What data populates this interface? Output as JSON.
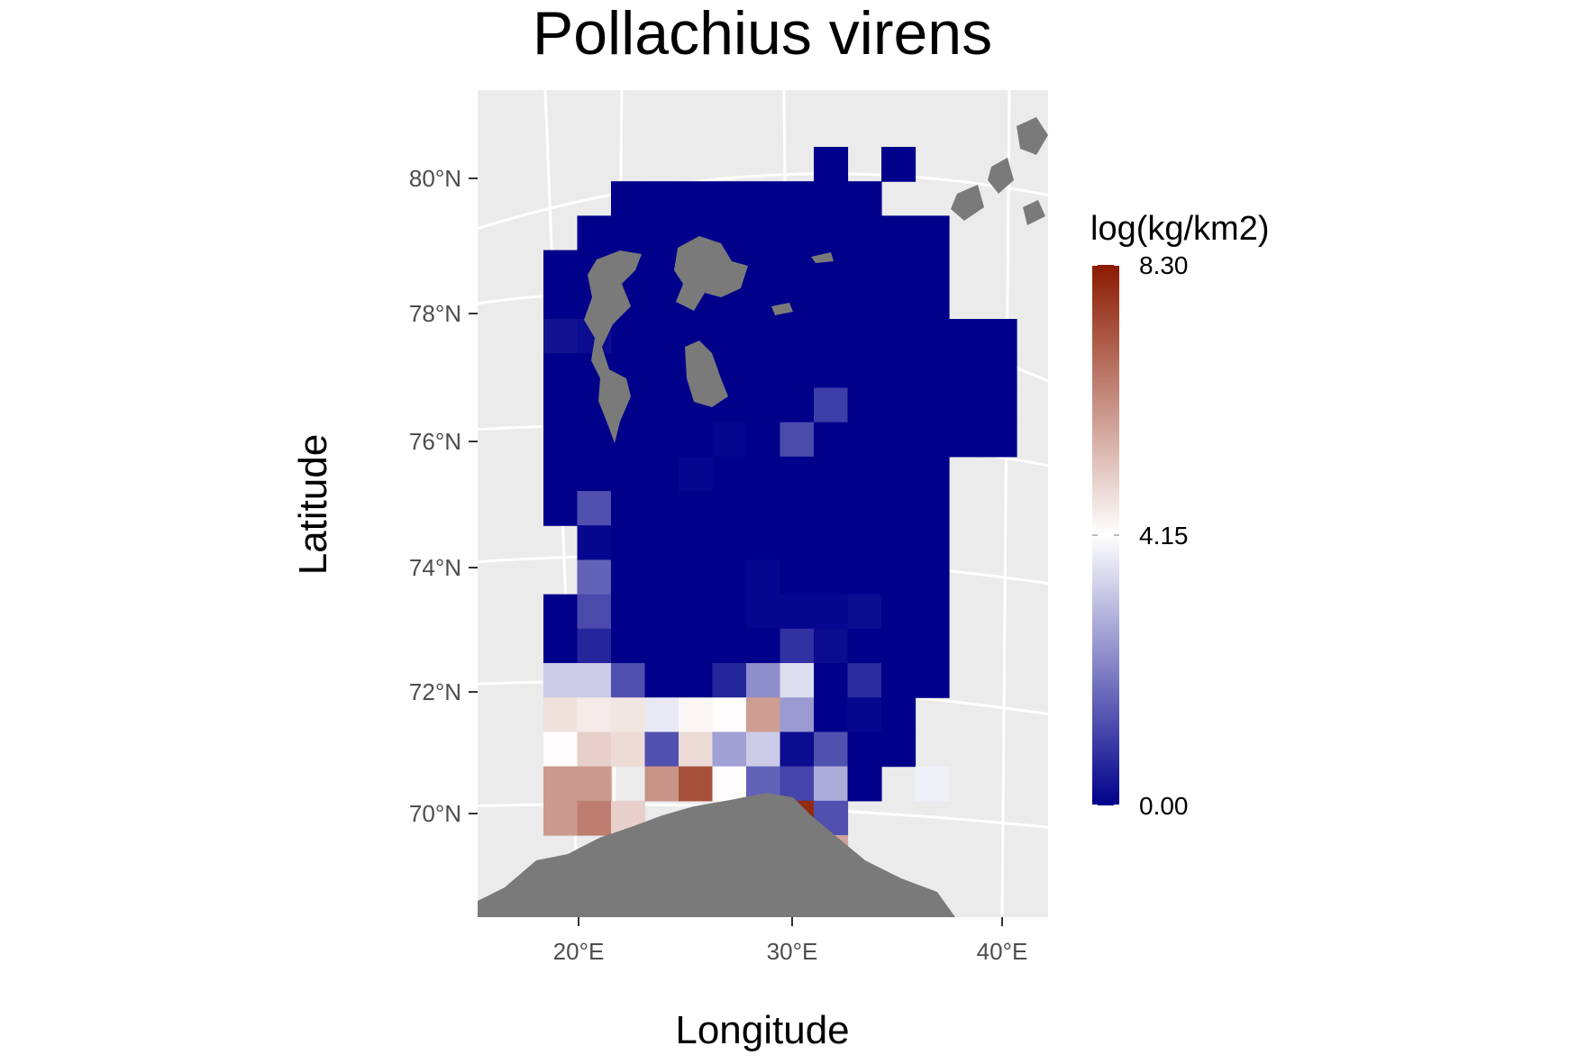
{
  "chart_data": {
    "type": "heatmap",
    "title": "Pollachius virens",
    "xlabel": "Longitude",
    "ylabel": "Latitude",
    "x_ticks": [
      "20°E",
      "30°E",
      "40°E"
    ],
    "y_ticks": [
      "70°N",
      "72°N",
      "74°N",
      "76°N",
      "78°N",
      "80°N"
    ],
    "legend": {
      "title": "log(kg/km2)",
      "ticks": [
        "8.30",
        "4.15",
        "0.00"
      ],
      "min": 0,
      "max": 8.3,
      "colors": {
        "low": "#00008b",
        "mid": "#ffffff",
        "high": "#8b1a00"
      }
    },
    "land_color": "#7a7a7a",
    "panel_background": "#ebebeb",
    "grid_color": "#ffffff",
    "grid": true,
    "legend_position": "right",
    "rows": [
      {
        "lat": 80.6,
        "values": [
          null,
          null,
          null,
          null,
          null,
          null,
          null,
          null,
          0.0,
          null,
          0.0,
          null,
          null,
          null
        ]
      },
      {
        "lat": 80.1,
        "values": [
          null,
          null,
          0.0,
          0.0,
          0.0,
          0.0,
          0.0,
          0.0,
          0.0,
          0.0,
          null,
          null,
          null,
          null
        ]
      },
      {
        "lat": 79.5,
        "values": [
          null,
          0.0,
          0.0,
          0.0,
          0.0,
          0.0,
          0.0,
          0.0,
          0.0,
          0.0,
          0.0,
          0.0,
          null,
          null
        ]
      },
      {
        "lat": 78.9,
        "values": [
          0.0,
          0.0,
          0.0,
          0.0,
          0.0,
          0.0,
          0.0,
          0.0,
          0.0,
          0.0,
          0.0,
          0.0,
          null,
          null
        ]
      },
      {
        "lat": 78.4,
        "values": [
          0.0,
          0.0,
          0.0,
          0.0,
          0.0,
          0.0,
          0.0,
          0.0,
          0.0,
          0.0,
          0.0,
          0.0,
          null,
          null
        ]
      },
      {
        "lat": 77.8,
        "values": [
          0.3,
          0.2,
          0.0,
          0.0,
          0.0,
          0.0,
          0.0,
          0.0,
          0.0,
          0.0,
          0.0,
          0.0,
          0.0,
          0.0
        ]
      },
      {
        "lat": 77.3,
        "values": [
          0.0,
          0.0,
          0.0,
          0.0,
          0.0,
          0.0,
          0.0,
          0.0,
          0.0,
          0.0,
          0.0,
          0.0,
          0.0,
          0.0
        ]
      },
      {
        "lat": 76.8,
        "values": [
          0.0,
          0.0,
          0.0,
          0.0,
          0.0,
          0.0,
          0.0,
          0.0,
          1.0,
          0.0,
          0.0,
          0.0,
          0.0,
          0.0
        ]
      },
      {
        "lat": 76.2,
        "values": [
          0.0,
          0.0,
          0.0,
          0.0,
          0.0,
          0.1,
          0.0,
          1.2,
          0.0,
          0.0,
          0.0,
          0.0,
          0.0,
          0.0
        ]
      },
      {
        "lat": 75.7,
        "values": [
          0.0,
          0.0,
          0.0,
          0.0,
          0.1,
          0.0,
          0.0,
          0.0,
          0.0,
          0.0,
          0.0,
          0.0,
          null,
          null
        ]
      },
      {
        "lat": 75.1,
        "values": [
          0.0,
          1.3,
          0.0,
          0.0,
          0.0,
          0.0,
          0.0,
          0.0,
          0.0,
          0.0,
          0.0,
          0.0,
          null,
          null
        ]
      },
      {
        "lat": 74.6,
        "values": [
          null,
          0.1,
          0.0,
          0.0,
          0.0,
          0.0,
          0.0,
          0.0,
          0.0,
          0.0,
          0.0,
          0.0,
          null,
          null
        ]
      },
      {
        "lat": 74.0,
        "values": [
          null,
          1.6,
          0.0,
          0.0,
          0.0,
          0.0,
          0.1,
          0.0,
          0.0,
          0.0,
          0.0,
          0.0,
          null,
          null
        ]
      },
      {
        "lat": 73.5,
        "values": [
          0.0,
          1.2,
          0.0,
          0.0,
          0.0,
          0.0,
          0.1,
          0.1,
          0.1,
          0.2,
          0.0,
          0.0,
          null,
          null
        ]
      },
      {
        "lat": 72.9,
        "values": [
          0.0,
          0.6,
          0.0,
          0.0,
          0.0,
          0.0,
          0.0,
          0.8,
          0.2,
          0.0,
          0.0,
          0.0,
          null,
          null
        ]
      },
      {
        "lat": 72.4,
        "values": [
          3.3,
          3.3,
          1.3,
          0.0,
          0.0,
          0.6,
          2.3,
          3.6,
          0.0,
          0.7,
          0.0,
          0.0,
          null,
          null
        ]
      },
      {
        "lat": 71.8,
        "values": [
          4.7,
          4.5,
          4.6,
          3.8,
          4.3,
          4.2,
          5.9,
          2.5,
          0.0,
          0.1,
          0.0,
          null,
          null,
          null
        ]
      },
      {
        "lat": 71.3,
        "values": [
          4.2,
          5.0,
          4.8,
          1.3,
          4.8,
          2.6,
          3.3,
          0.2,
          1.3,
          0.0,
          0.0,
          null,
          null,
          null
        ]
      },
      {
        "lat": 70.7,
        "values": [
          6.0,
          6.0,
          null,
          6.1,
          7.3,
          4.2,
          1.6,
          1.1,
          2.8,
          0.0,
          null,
          3.9,
          null,
          null
        ]
      },
      {
        "lat": 70.2,
        "values": [
          6.0,
          6.5,
          5.0,
          null,
          null,
          null,
          null,
          8.0,
          1.3,
          null,
          null,
          null,
          null,
          null
        ]
      },
      {
        "lat": 69.6,
        "values": [
          null,
          null,
          null,
          null,
          null,
          null,
          null,
          3.3,
          5.8,
          null,
          null,
          null,
          null,
          null
        ]
      }
    ]
  }
}
